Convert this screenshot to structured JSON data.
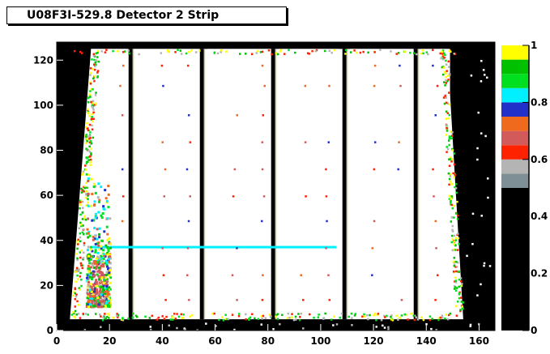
{
  "chart_data": {
    "type": "heatmap",
    "title": "U08F3I-529.8 Detector 2 Strip",
    "xlabel": "",
    "ylabel": "",
    "xlim": [
      0,
      166
    ],
    "ylim": [
      0,
      128
    ],
    "zlim": [
      0,
      1
    ],
    "x_ticks": [
      {
        "value": 0,
        "label": "0"
      },
      {
        "value": 20,
        "label": "20"
      },
      {
        "value": 40,
        "label": "40"
      },
      {
        "value": 60,
        "label": "60"
      },
      {
        "value": 80,
        "label": "80"
      },
      {
        "value": 100,
        "label": "100"
      },
      {
        "value": 120,
        "label": "120"
      },
      {
        "value": 140,
        "label": "140"
      },
      {
        "value": 160,
        "label": "160"
      }
    ],
    "y_ticks": [
      {
        "value": 0,
        "label": "0"
      },
      {
        "value": 20,
        "label": "20"
      },
      {
        "value": 40,
        "label": "40"
      },
      {
        "value": 60,
        "label": "60"
      },
      {
        "value": 80,
        "label": "80"
      },
      {
        "value": 100,
        "label": "100"
      },
      {
        "value": 120,
        "label": "120"
      }
    ],
    "z_ticks": [
      {
        "value": 0,
        "label": "0"
      },
      {
        "value": 0.2,
        "label": "0.2"
      },
      {
        "value": 0.4,
        "label": "0.4"
      },
      {
        "value": 0.6,
        "label": "0.6"
      },
      {
        "value": 0.8,
        "label": "0.8"
      },
      {
        "value": 1,
        "label": "1"
      }
    ],
    "palette": [
      {
        "from": 0.0,
        "to": 0.5,
        "color": "#000000"
      },
      {
        "from": 0.5,
        "to": 0.55,
        "color": "#7f8f96"
      },
      {
        "from": 0.55,
        "to": 0.6,
        "color": "#b4b4b4"
      },
      {
        "from": 0.6,
        "to": 0.65,
        "color": "#ff2200"
      },
      {
        "from": 0.65,
        "to": 0.7,
        "color": "#d35a5a"
      },
      {
        "from": 0.7,
        "to": 0.75,
        "color": "#f06a1e"
      },
      {
        "from": 0.75,
        "to": 0.8,
        "color": "#2030c8"
      },
      {
        "from": 0.8,
        "to": 0.85,
        "color": "#00f0ff"
      },
      {
        "from": 0.85,
        "to": 0.9,
        "color": "#00e020"
      },
      {
        "from": 0.9,
        "to": 0.95,
        "color": "#00c000"
      },
      {
        "from": 0.95,
        "to": 1.0,
        "color": "#ffff00"
      }
    ],
    "detector_outline": {
      "y_range": [
        5,
        125
      ],
      "left_edge_x": [
        5,
        13
      ],
      "right_edge_x": [
        154,
        148
      ]
    },
    "white_regions": [
      {
        "x": [
          13,
          27
        ],
        "y": [
          6,
          125
        ],
        "taper_left": true
      },
      {
        "x": [
          29,
          54
        ],
        "y": [
          6,
          125
        ]
      },
      {
        "x": [
          57,
          81
        ],
        "y": [
          6,
          125
        ]
      },
      {
        "x": [
          84,
          107
        ],
        "y": [
          6,
          125
        ]
      },
      {
        "x": [
          111,
          135
        ],
        "y": [
          6,
          125
        ]
      },
      {
        "x": [
          138,
          149
        ],
        "y": [
          6,
          125
        ],
        "taper_right": true
      }
    ],
    "dead_strips_x": [
      28,
      55,
      82,
      109,
      136
    ],
    "horizontal_feature": {
      "y": 37,
      "x": [
        13,
        106
      ],
      "z": 0.82
    },
    "hot_cluster": {
      "x": [
        11,
        20
      ],
      "y": [
        11,
        68
      ],
      "z_range": [
        0.6,
        0.95
      ]
    },
    "dots_z": 0.7
  }
}
